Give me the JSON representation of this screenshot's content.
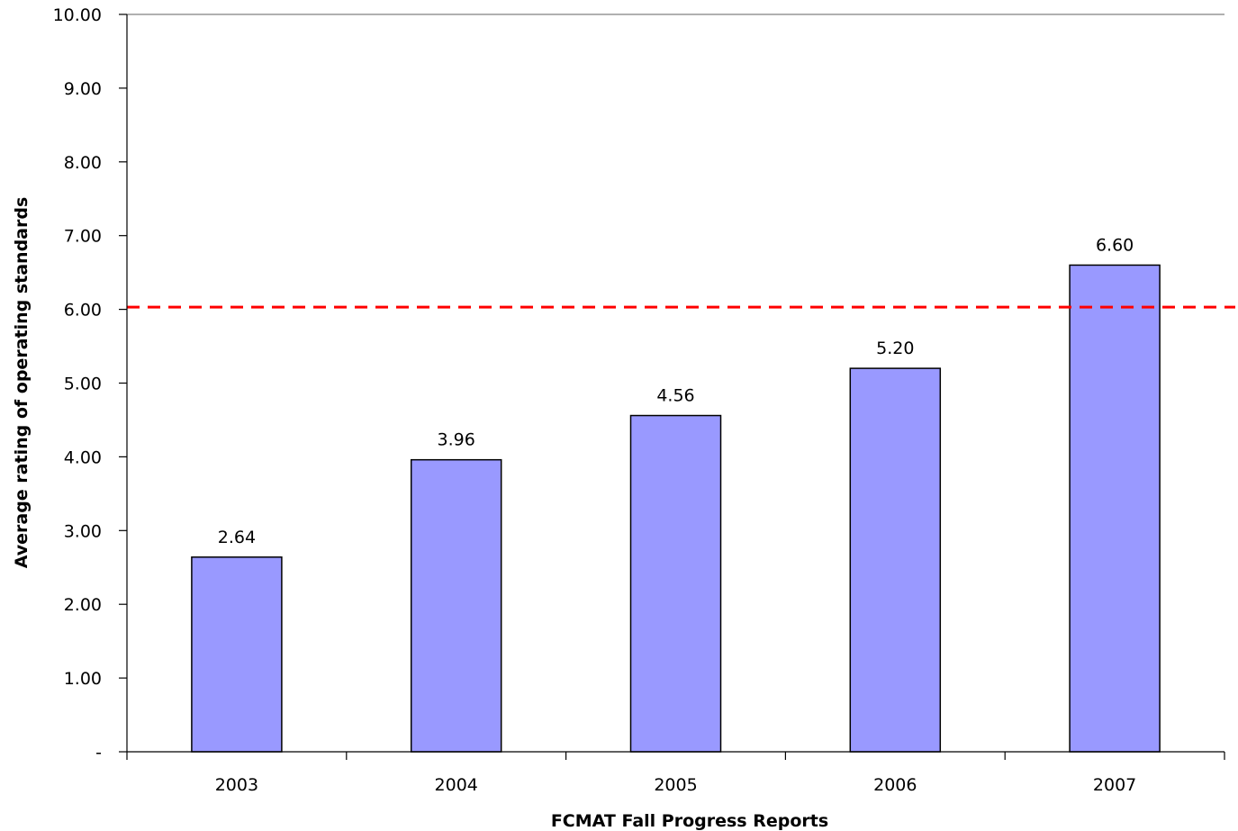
{
  "chart_data": {
    "type": "bar",
    "title": "",
    "xlabel": "FCMAT Fall Progress Reports",
    "ylabel": "Average rating of operating standards",
    "categories": [
      "2003",
      "2004",
      "2005",
      "2006",
      "2007"
    ],
    "values": [
      2.64,
      3.96,
      4.56,
      5.2,
      6.6
    ],
    "value_labels": [
      "2.64",
      "3.96",
      "4.56",
      "5.20",
      "6.60"
    ],
    "ylim": [
      0,
      10
    ],
    "yticks": [
      0,
      1,
      2,
      3,
      4,
      5,
      6,
      7,
      8,
      9,
      10
    ],
    "ytick_labels": [
      "-",
      "1.00",
      "2.00",
      "3.00",
      "4.00",
      "5.00",
      "6.00",
      "7.00",
      "8.00",
      "9.00",
      "10.00"
    ],
    "reference_line": {
      "value": 6.03,
      "style": "dashed",
      "color": "#ff0000"
    },
    "bar_color": "#9999ff",
    "bar_edge_color": "#000000",
    "grid": false,
    "legend": "none"
  }
}
